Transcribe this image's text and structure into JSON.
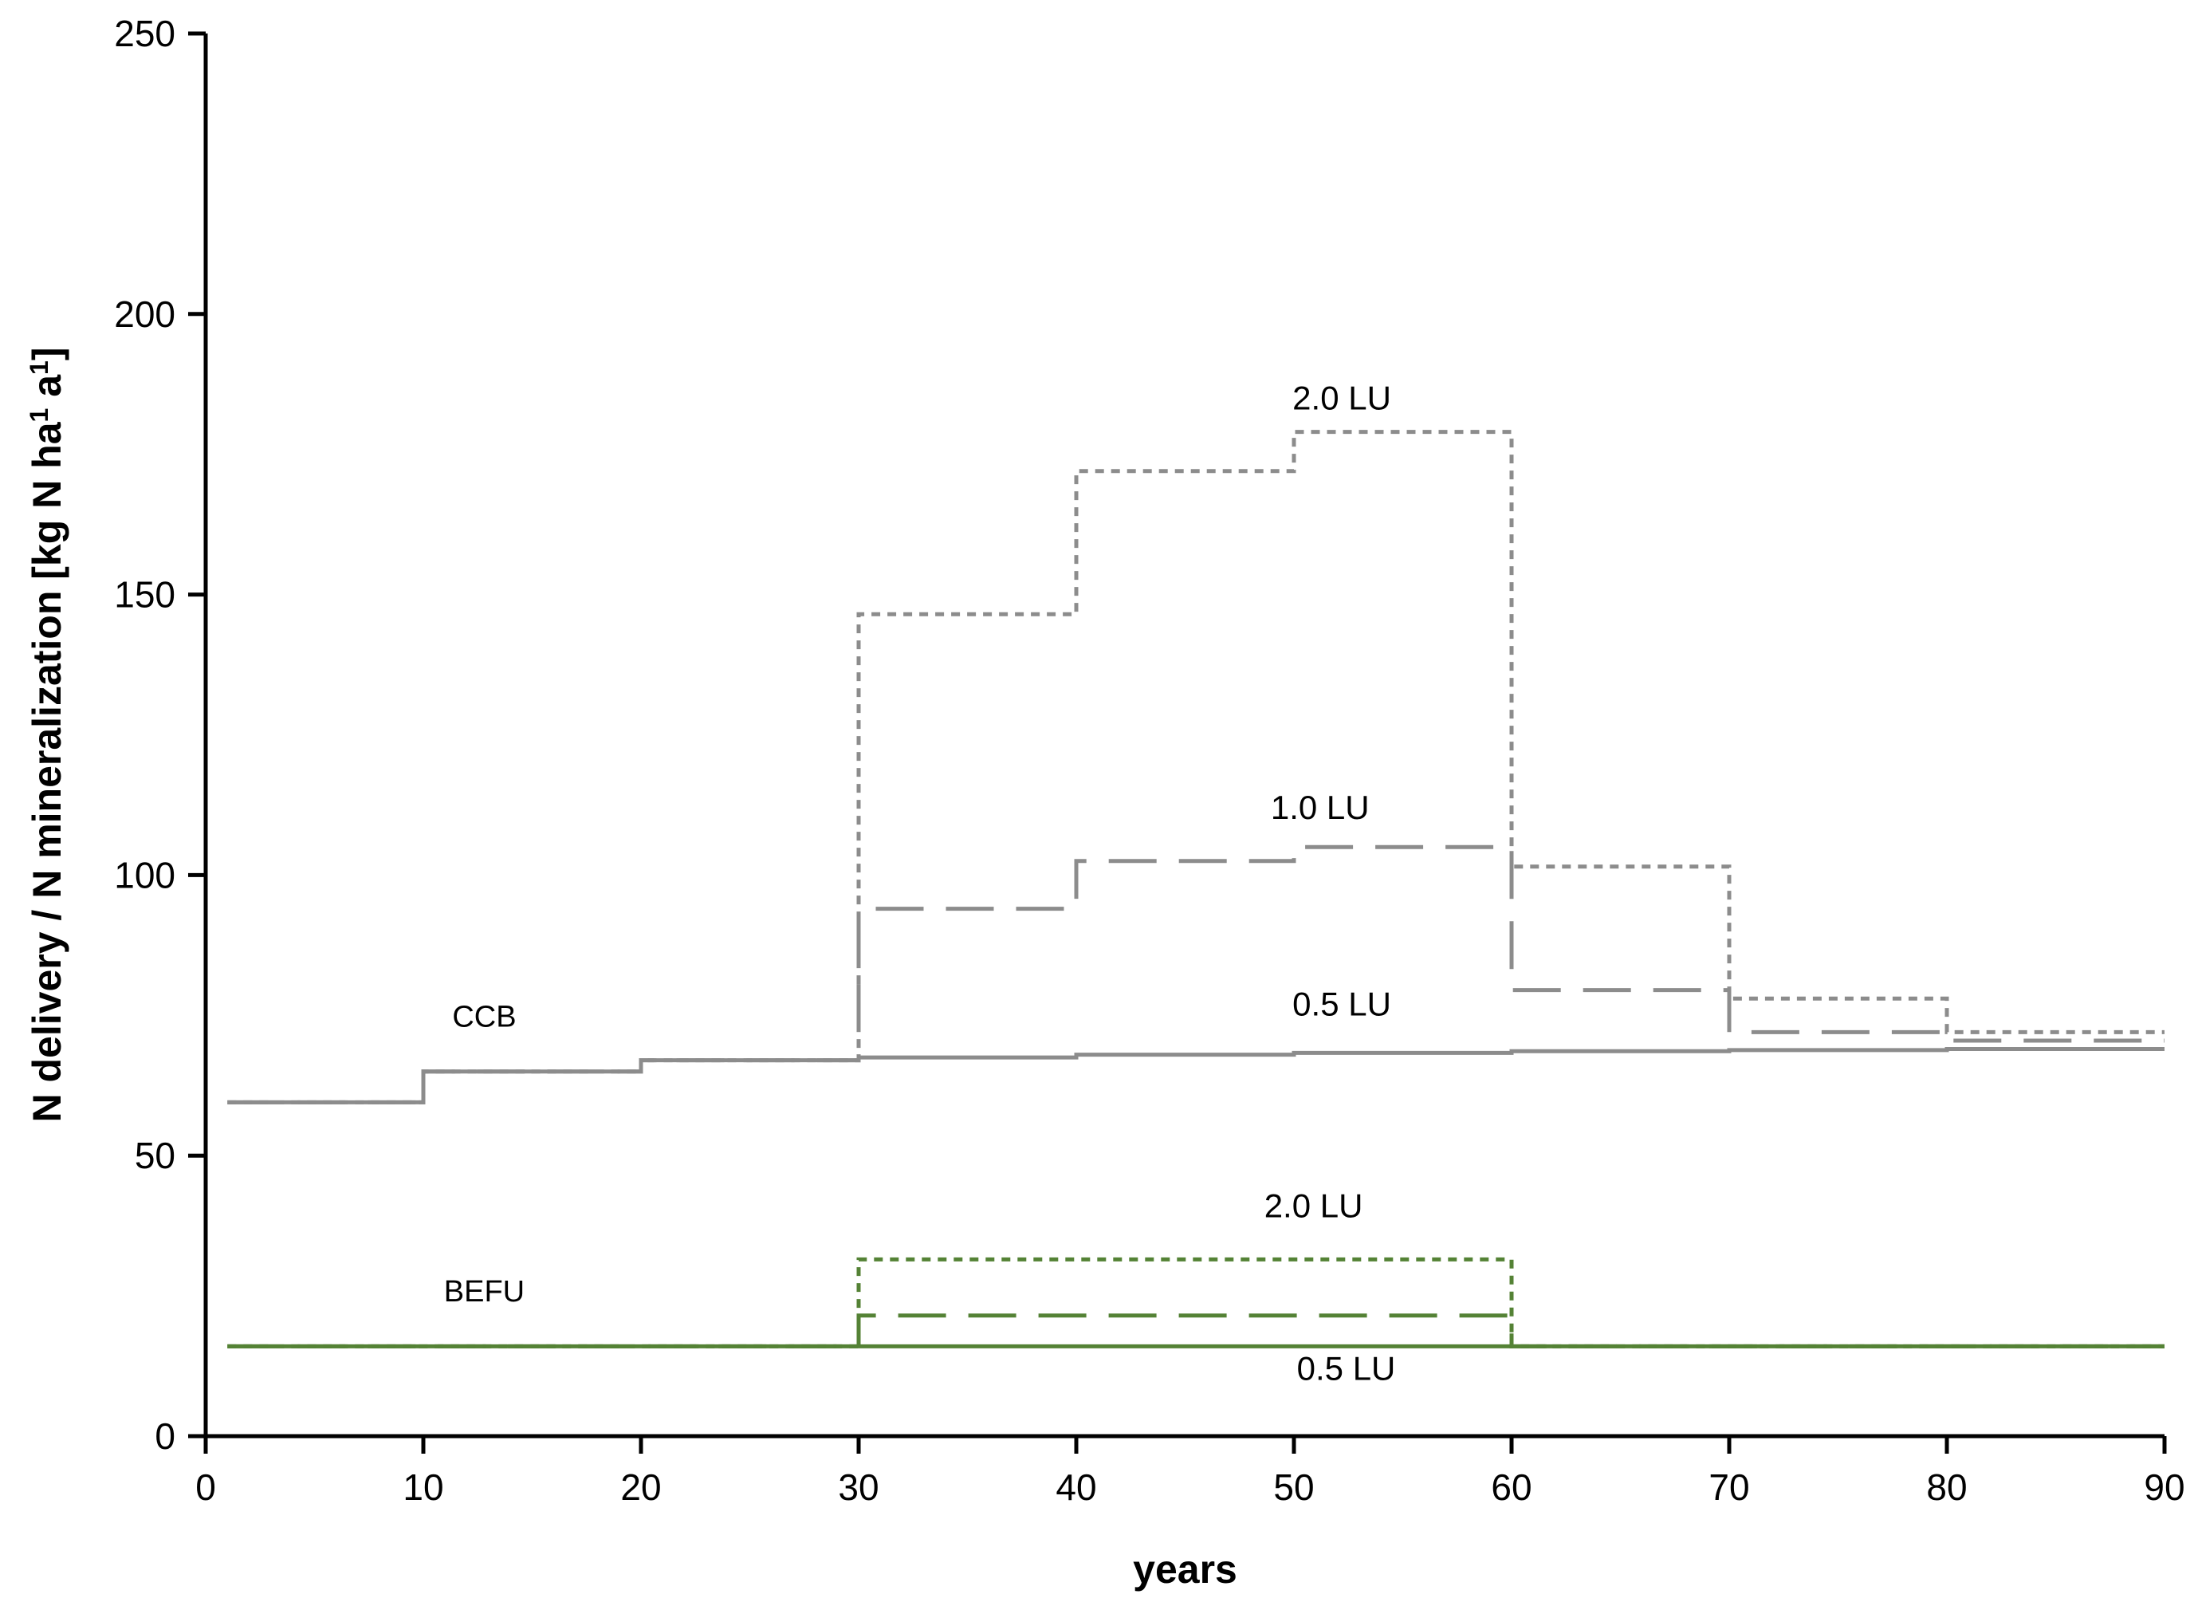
{
  "chart_data": {
    "type": "line",
    "xlabel": "years",
    "ylabel_main": "N delivery / N mineralization [kg N ha",
    "ylabel_sup1": "1",
    "ylabel_mid": " a",
    "ylabel_sup2": "1",
    "ylabel_end": "]",
    "xlim": [
      0,
      90
    ],
    "ylim": [
      0,
      250
    ],
    "x_ticks": [
      "0",
      "10",
      "20",
      "30",
      "40",
      "50",
      "60",
      "70",
      "80",
      "90"
    ],
    "y_ticks": [
      "0",
      "50",
      "100",
      "150",
      "200",
      "250"
    ],
    "grid": false,
    "legend": "none",
    "series": [
      {
        "group": "CCB",
        "stocking": "2.0 LU",
        "color": "#8c8c8c",
        "style": "dotted",
        "x": [
          1,
          10,
          10,
          20,
          20,
          30,
          30,
          40,
          40,
          50,
          50,
          60,
          60,
          70,
          70,
          80,
          80,
          90
        ],
        "y": [
          59.5,
          59.5,
          65,
          65,
          67,
          67,
          146.5,
          146.5,
          172,
          172,
          179,
          179,
          101.5,
          101.5,
          78,
          78,
          72,
          72
        ]
      },
      {
        "group": "CCB",
        "stocking": "1.0 LU",
        "color": "#8c8c8c",
        "style": "dashed",
        "x": [
          1,
          10,
          10,
          20,
          20,
          30,
          30,
          40,
          40,
          50,
          50,
          60,
          60,
          70,
          70,
          80,
          80,
          90
        ],
        "y": [
          59.5,
          59.5,
          65,
          65,
          67,
          67,
          94,
          94,
          102.5,
          102.5,
          105,
          105,
          79.5,
          79.5,
          72,
          72,
          70.5,
          70.5
        ]
      },
      {
        "group": "CCB",
        "stocking": "0.5 LU",
        "color": "#8c8c8c",
        "style": "solid",
        "x": [
          1,
          10,
          10,
          20,
          20,
          30,
          30,
          40,
          40,
          50,
          50,
          60,
          60,
          70,
          70,
          80,
          80,
          90
        ],
        "y": [
          59.5,
          59.5,
          65,
          65,
          67,
          67,
          67.5,
          67.5,
          68,
          68,
          68.3,
          68.3,
          68.6,
          68.6,
          68.8,
          68.8,
          69,
          69
        ]
      },
      {
        "group": "BEFU",
        "stocking": "2.0 LU",
        "color": "#548235",
        "style": "dotted",
        "x": [
          1,
          30,
          30,
          60,
          60,
          90
        ],
        "y": [
          16,
          16,
          31.5,
          31.5,
          16,
          16
        ]
      },
      {
        "group": "BEFU",
        "stocking": "1.0 LU",
        "color": "#548235",
        "style": "dashed",
        "x": [
          1,
          30,
          30,
          60,
          60,
          90
        ],
        "y": [
          16,
          16,
          21.5,
          21.5,
          16,
          16
        ]
      },
      {
        "group": "BEFU",
        "stocking": "0.5 LU",
        "color": "#548235",
        "style": "solid",
        "x": [
          1,
          90
        ],
        "y": [
          16,
          16
        ]
      }
    ],
    "annotations": [
      {
        "text": "CCB",
        "x": 12.8,
        "y": 73,
        "size": "small"
      },
      {
        "text": "2.0 LU",
        "x": 52.2,
        "y": 183,
        "size": "normal"
      },
      {
        "text": "1.0 LU",
        "x": 51.2,
        "y": 110,
        "size": "normal"
      },
      {
        "text": "0.5 LU",
        "x": 52.2,
        "y": 75,
        "size": "normal"
      },
      {
        "text": "BEFU",
        "x": 12.8,
        "y": 24,
        "size": "small"
      },
      {
        "text": "2.0 LU",
        "x": 50.9,
        "y": 39,
        "size": "normal"
      },
      {
        "text": "0.5 LU",
        "x": 52.4,
        "y": 10,
        "size": "normal"
      }
    ]
  }
}
